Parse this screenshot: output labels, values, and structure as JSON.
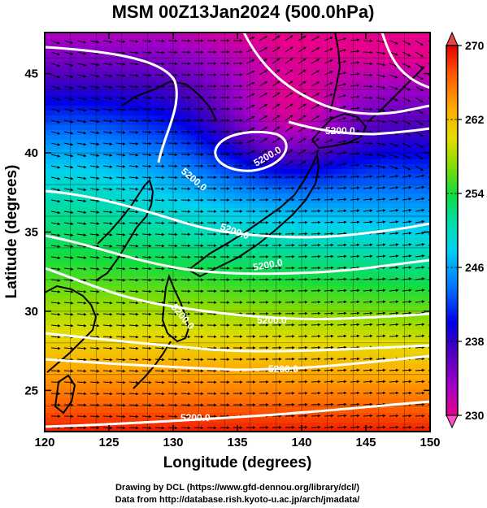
{
  "title": "MSM 00Z13Jan2024 (500.0hPa)",
  "x_axis": {
    "label": "Longitude (degrees)",
    "range": [
      120,
      150
    ],
    "ticks": [
      120,
      125,
      130,
      135,
      140,
      145,
      150
    ]
  },
  "y_axis": {
    "label": "Latitude  (degrees)",
    "range": [
      22.4,
      47.6
    ],
    "ticks": [
      25,
      30,
      35,
      40,
      45
    ]
  },
  "colorbar": {
    "range": [
      230,
      270
    ],
    "ticks": [
      "230",
      "238",
      "246",
      "254",
      "262",
      "270"
    ],
    "colors": [
      "#c800c8",
      "#5a00b4",
      "#0000dc",
      "#0050ff",
      "#00b4ff",
      "#00dcc8",
      "#00dc78",
      "#3cdc00",
      "#c8dc00",
      "#ffb400",
      "#ff5000",
      "#dc0000"
    ]
  },
  "contours": {
    "color": "#ffffff",
    "labels": [
      "5200.0",
      "5200.0",
      "5200.0",
      "5200.0",
      "5200.0",
      "5200.0",
      "5200.0",
      "5200.0",
      "5200.0"
    ]
  },
  "coastline_color": "#000000",
  "credits": [
    "Drawing by DCL (https://www.gfd-dennou.org/library/dcl/)",
    "Data from http://database.rish.kyoto-u.ac.jp/arch/jmadata/"
  ]
}
